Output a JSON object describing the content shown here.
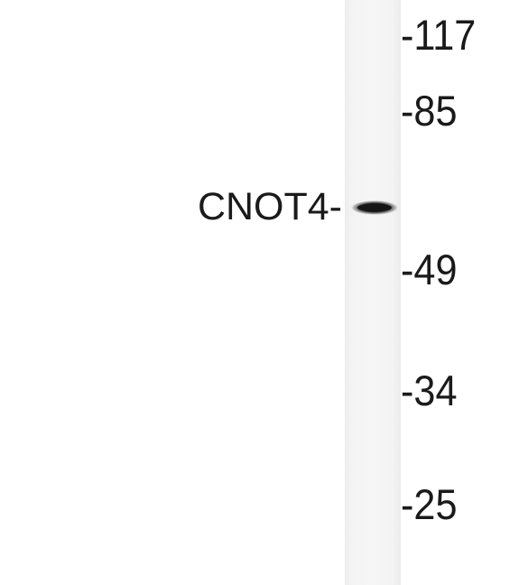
{
  "blot": {
    "band_label": "CNOT4-",
    "markers": [
      {
        "label": "-117"
      },
      {
        "label": "-85"
      },
      {
        "label": "-49"
      },
      {
        "label": "-34"
      },
      {
        "label": "-25"
      }
    ]
  },
  "colors": {
    "lane": "#f2f2f2",
    "band": "#1c1c1c",
    "text": "#1a1a1a",
    "background": "#ffffff"
  }
}
